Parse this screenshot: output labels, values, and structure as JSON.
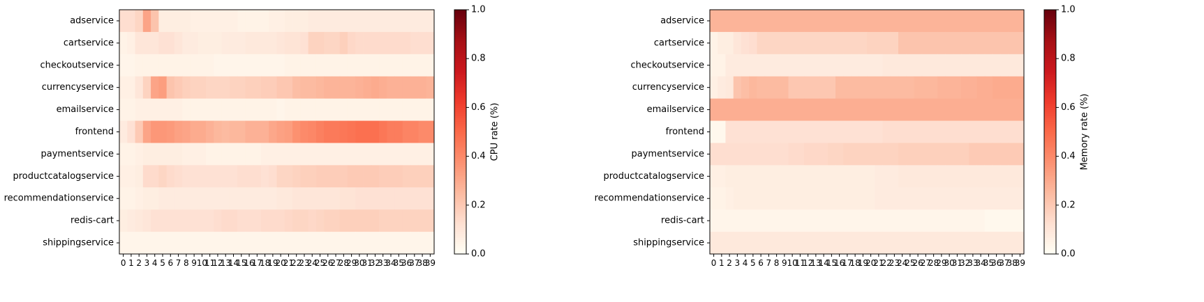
{
  "chart_data": [
    {
      "type": "heatmap",
      "rows": [
        "adservice",
        "cartservice",
        "checkoutservice",
        "currencyservice",
        "emailservice",
        "frontend",
        "paymentservice",
        "productcatalogservice",
        "recommendationservice",
        "redis-cart",
        "shippingservice"
      ],
      "x": [
        0,
        1,
        2,
        3,
        4,
        5,
        6,
        7,
        8,
        9,
        10,
        11,
        12,
        13,
        14,
        15,
        16,
        17,
        18,
        19,
        20,
        21,
        22,
        23,
        24,
        25,
        26,
        27,
        28,
        29,
        30,
        31,
        32,
        33,
        34,
        35,
        36,
        37,
        38,
        39
      ],
      "xtick_labels": [
        "0",
        "1",
        "2",
        "3",
        "4",
        "5",
        "6",
        "7",
        "8",
        "9",
        "10",
        "11",
        "12",
        "13",
        "14",
        "15",
        "16",
        "17",
        "18",
        "19",
        "20",
        "21",
        "22",
        "23",
        "24",
        "25",
        "26",
        "27",
        "28",
        "29",
        "30",
        "31",
        "32",
        "33",
        "34",
        "35",
        "36",
        "37",
        "38",
        "39"
      ],
      "colormap": "Reds",
      "vmin": 0,
      "vmax": 1,
      "colorbar_label": "CPU rate (%)",
      "colorbar_ticks": [
        "0.0",
        "0.2",
        "0.4",
        "0.6",
        "0.8",
        "1.0"
      ],
      "colorbar_tick_values": [
        0,
        0.2,
        0.4,
        0.6,
        0.8,
        1.0
      ],
      "values": [
        [
          0.13,
          0.13,
          0.16,
          0.32,
          0.22,
          0.07,
          0.07,
          0.07,
          0.07,
          0.06,
          0.06,
          0.06,
          0.06,
          0.06,
          0.06,
          0.05,
          0.05,
          0.05,
          0.05,
          0.06,
          0.06,
          0.07,
          0.07,
          0.07,
          0.08,
          0.08,
          0.08,
          0.08,
          0.08,
          0.08,
          0.08,
          0.08,
          0.08,
          0.08,
          0.08,
          0.08,
          0.08,
          0.08,
          0.08,
          0.08
        ],
        [
          0.05,
          0.06,
          0.1,
          0.1,
          0.1,
          0.12,
          0.12,
          0.1,
          0.08,
          0.08,
          0.07,
          0.07,
          0.07,
          0.08,
          0.08,
          0.08,
          0.09,
          0.09,
          0.09,
          0.09,
          0.1,
          0.11,
          0.11,
          0.12,
          0.17,
          0.17,
          0.16,
          0.16,
          0.18,
          0.15,
          0.14,
          0.14,
          0.14,
          0.14,
          0.14,
          0.14,
          0.14,
          0.13,
          0.13,
          0.13
        ],
        [
          0.04,
          0.04,
          0.05,
          0.05,
          0.05,
          0.05,
          0.05,
          0.05,
          0.05,
          0.05,
          0.05,
          0.05,
          0.04,
          0.04,
          0.04,
          0.04,
          0.04,
          0.04,
          0.04,
          0.04,
          0.04,
          0.05,
          0.05,
          0.05,
          0.05,
          0.05,
          0.05,
          0.05,
          0.05,
          0.05,
          0.05,
          0.05,
          0.05,
          0.05,
          0.05,
          0.05,
          0.05,
          0.05,
          0.05,
          0.05
        ],
        [
          0.06,
          0.06,
          0.1,
          0.17,
          0.32,
          0.34,
          0.22,
          0.2,
          0.18,
          0.17,
          0.17,
          0.16,
          0.16,
          0.16,
          0.17,
          0.17,
          0.18,
          0.18,
          0.19,
          0.19,
          0.21,
          0.21,
          0.24,
          0.25,
          0.25,
          0.26,
          0.27,
          0.27,
          0.27,
          0.27,
          0.28,
          0.29,
          0.3,
          0.29,
          0.28,
          0.28,
          0.28,
          0.28,
          0.28,
          0.27
        ],
        [
          0.05,
          0.05,
          0.06,
          0.06,
          0.06,
          0.06,
          0.06,
          0.06,
          0.05,
          0.05,
          0.05,
          0.05,
          0.05,
          0.05,
          0.05,
          0.05,
          0.05,
          0.05,
          0.05,
          0.05,
          0.04,
          0.05,
          0.05,
          0.05,
          0.05,
          0.05,
          0.05,
          0.05,
          0.05,
          0.05,
          0.05,
          0.05,
          0.05,
          0.05,
          0.05,
          0.05,
          0.05,
          0.05,
          0.05,
          0.05
        ],
        [
          0.08,
          0.12,
          0.2,
          0.32,
          0.36,
          0.36,
          0.35,
          0.33,
          0.32,
          0.3,
          0.3,
          0.28,
          0.26,
          0.25,
          0.26,
          0.26,
          0.28,
          0.28,
          0.28,
          0.31,
          0.33,
          0.34,
          0.38,
          0.4,
          0.41,
          0.43,
          0.45,
          0.45,
          0.46,
          0.47,
          0.48,
          0.48,
          0.48,
          0.46,
          0.44,
          0.44,
          0.42,
          0.42,
          0.4,
          0.4
        ],
        [
          0.05,
          0.05,
          0.06,
          0.07,
          0.07,
          0.07,
          0.07,
          0.07,
          0.06,
          0.06,
          0.06,
          0.05,
          0.05,
          0.05,
          0.05,
          0.05,
          0.05,
          0.05,
          0.06,
          0.06,
          0.06,
          0.06,
          0.06,
          0.06,
          0.06,
          0.06,
          0.06,
          0.06,
          0.06,
          0.06,
          0.06,
          0.06,
          0.06,
          0.06,
          0.06,
          0.06,
          0.06,
          0.06,
          0.06,
          0.06
        ],
        [
          0.06,
          0.06,
          0.07,
          0.14,
          0.14,
          0.16,
          0.14,
          0.13,
          0.12,
          0.12,
          0.12,
          0.12,
          0.12,
          0.12,
          0.12,
          0.13,
          0.13,
          0.13,
          0.12,
          0.13,
          0.16,
          0.16,
          0.17,
          0.18,
          0.18,
          0.19,
          0.19,
          0.19,
          0.19,
          0.2,
          0.2,
          0.2,
          0.2,
          0.19,
          0.19,
          0.19,
          0.18,
          0.18,
          0.18,
          0.18
        ],
        [
          0.05,
          0.05,
          0.06,
          0.07,
          0.07,
          0.08,
          0.08,
          0.08,
          0.08,
          0.08,
          0.08,
          0.08,
          0.08,
          0.08,
          0.08,
          0.08,
          0.08,
          0.08,
          0.08,
          0.08,
          0.09,
          0.09,
          0.1,
          0.1,
          0.1,
          0.1,
          0.1,
          0.1,
          0.11,
          0.11,
          0.12,
          0.12,
          0.12,
          0.12,
          0.12,
          0.12,
          0.12,
          0.12,
          0.12,
          0.12
        ],
        [
          0.07,
          0.08,
          0.09,
          0.1,
          0.12,
          0.12,
          0.12,
          0.12,
          0.12,
          0.12,
          0.12,
          0.12,
          0.13,
          0.14,
          0.14,
          0.13,
          0.13,
          0.13,
          0.14,
          0.14,
          0.14,
          0.15,
          0.16,
          0.16,
          0.15,
          0.16,
          0.17,
          0.17,
          0.18,
          0.18,
          0.18,
          0.18,
          0.18,
          0.17,
          0.17,
          0.17,
          0.17,
          0.17,
          0.17,
          0.17
        ],
        [
          0.04,
          0.04,
          0.04,
          0.04,
          0.04,
          0.04,
          0.04,
          0.04,
          0.04,
          0.04,
          0.04,
          0.04,
          0.04,
          0.04,
          0.04,
          0.04,
          0.04,
          0.04,
          0.04,
          0.04,
          0.04,
          0.04,
          0.04,
          0.04,
          0.04,
          0.04,
          0.04,
          0.04,
          0.04,
          0.04,
          0.04,
          0.04,
          0.04,
          0.04,
          0.04,
          0.04,
          0.04,
          0.04,
          0.04,
          0.04
        ]
      ]
    },
    {
      "type": "heatmap",
      "rows": [
        "adservice",
        "cartservice",
        "checkoutservice",
        "currencyservice",
        "emailservice",
        "frontend",
        "paymentservice",
        "productcatalogservice",
        "recommendationservice",
        "redis-cart",
        "shippingservice"
      ],
      "x": [
        0,
        1,
        2,
        3,
        4,
        5,
        6,
        7,
        8,
        9,
        10,
        11,
        12,
        13,
        14,
        15,
        16,
        17,
        18,
        19,
        20,
        21,
        22,
        23,
        24,
        25,
        26,
        27,
        28,
        29,
        30,
        31,
        32,
        33,
        34,
        35,
        36,
        37,
        38,
        39
      ],
      "xtick_labels": [
        "0",
        "1",
        "2",
        "3",
        "4",
        "5",
        "6",
        "7",
        "8",
        "9",
        "10",
        "11",
        "12",
        "13",
        "14",
        "15",
        "16",
        "17",
        "18",
        "19",
        "20",
        "21",
        "22",
        "23",
        "24",
        "25",
        "26",
        "27",
        "28",
        "29",
        "30",
        "31",
        "32",
        "33",
        "34",
        "35",
        "36",
        "37",
        "38",
        "39"
      ],
      "colormap": "Reds",
      "vmin": 0,
      "vmax": 1,
      "colorbar_label": "Memory rate (%)",
      "colorbar_ticks": [
        "0.0",
        "0.2",
        "0.4",
        "0.6",
        "0.8",
        "1.0"
      ],
      "colorbar_tick_values": [
        0,
        0.2,
        0.4,
        0.6,
        0.8,
        1.0
      ],
      "values": [
        [
          0.27,
          0.27,
          0.27,
          0.27,
          0.27,
          0.27,
          0.27,
          0.27,
          0.27,
          0.27,
          0.27,
          0.27,
          0.27,
          0.27,
          0.27,
          0.27,
          0.27,
          0.27,
          0.27,
          0.27,
          0.27,
          0.27,
          0.27,
          0.27,
          0.27,
          0.27,
          0.27,
          0.27,
          0.27,
          0.27,
          0.27,
          0.27,
          0.27,
          0.27,
          0.27,
          0.27,
          0.27,
          0.27,
          0.27,
          0.27
        ],
        [
          0.05,
          0.07,
          0.07,
          0.1,
          0.12,
          0.13,
          0.16,
          0.16,
          0.16,
          0.16,
          0.16,
          0.16,
          0.16,
          0.16,
          0.16,
          0.16,
          0.16,
          0.16,
          0.16,
          0.16,
          0.17,
          0.17,
          0.17,
          0.17,
          0.22,
          0.22,
          0.22,
          0.22,
          0.22,
          0.22,
          0.22,
          0.22,
          0.22,
          0.22,
          0.22,
          0.22,
          0.22,
          0.22,
          0.22,
          0.22
        ],
        [
          0.05,
          0.05,
          0.08,
          0.08,
          0.08,
          0.08,
          0.08,
          0.08,
          0.08,
          0.08,
          0.08,
          0.08,
          0.08,
          0.08,
          0.08,
          0.08,
          0.08,
          0.08,
          0.08,
          0.08,
          0.08,
          0.08,
          0.09,
          0.09,
          0.09,
          0.09,
          0.09,
          0.09,
          0.09,
          0.09,
          0.09,
          0.09,
          0.09,
          0.09,
          0.09,
          0.09,
          0.09,
          0.09,
          0.09,
          0.09
        ],
        [
          0.06,
          0.08,
          0.09,
          0.22,
          0.24,
          0.26,
          0.25,
          0.25,
          0.25,
          0.25,
          0.21,
          0.21,
          0.21,
          0.21,
          0.21,
          0.21,
          0.25,
          0.25,
          0.25,
          0.25,
          0.25,
          0.25,
          0.25,
          0.25,
          0.25,
          0.25,
          0.26,
          0.26,
          0.26,
          0.27,
          0.27,
          0.27,
          0.28,
          0.28,
          0.29,
          0.29,
          0.3,
          0.3,
          0.3,
          0.3
        ],
        [
          0.29,
          0.29,
          0.29,
          0.29,
          0.29,
          0.29,
          0.29,
          0.29,
          0.29,
          0.29,
          0.29,
          0.29,
          0.29,
          0.29,
          0.29,
          0.29,
          0.29,
          0.29,
          0.29,
          0.29,
          0.29,
          0.29,
          0.29,
          0.29,
          0.29,
          0.29,
          0.29,
          0.29,
          0.29,
          0.29,
          0.29,
          0.29,
          0.29,
          0.29,
          0.29,
          0.29,
          0.29,
          0.29,
          0.29,
          0.29
        ],
        [
          0.03,
          0.03,
          0.12,
          0.12,
          0.12,
          0.12,
          0.12,
          0.12,
          0.12,
          0.12,
          0.12,
          0.12,
          0.12,
          0.12,
          0.12,
          0.12,
          0.12,
          0.12,
          0.12,
          0.12,
          0.12,
          0.12,
          0.13,
          0.13,
          0.13,
          0.13,
          0.13,
          0.13,
          0.13,
          0.13,
          0.13,
          0.13,
          0.13,
          0.13,
          0.13,
          0.13,
          0.13,
          0.13,
          0.13,
          0.13
        ],
        [
          0.13,
          0.13,
          0.13,
          0.13,
          0.13,
          0.13,
          0.13,
          0.13,
          0.13,
          0.13,
          0.14,
          0.14,
          0.15,
          0.15,
          0.15,
          0.16,
          0.16,
          0.17,
          0.17,
          0.17,
          0.17,
          0.17,
          0.17,
          0.17,
          0.18,
          0.18,
          0.18,
          0.18,
          0.18,
          0.18,
          0.18,
          0.18,
          0.18,
          0.2,
          0.2,
          0.2,
          0.2,
          0.2,
          0.2,
          0.2
        ],
        [
          0.06,
          0.06,
          0.07,
          0.07,
          0.07,
          0.07,
          0.07,
          0.07,
          0.07,
          0.07,
          0.07,
          0.07,
          0.07,
          0.07,
          0.07,
          0.07,
          0.07,
          0.07,
          0.07,
          0.07,
          0.07,
          0.08,
          0.08,
          0.08,
          0.09,
          0.09,
          0.09,
          0.09,
          0.09,
          0.09,
          0.09,
          0.09,
          0.09,
          0.09,
          0.09,
          0.09,
          0.09,
          0.09,
          0.09,
          0.09
        ],
        [
          0.05,
          0.05,
          0.06,
          0.07,
          0.07,
          0.07,
          0.07,
          0.07,
          0.07,
          0.07,
          0.07,
          0.07,
          0.07,
          0.07,
          0.07,
          0.07,
          0.07,
          0.07,
          0.07,
          0.07,
          0.07,
          0.08,
          0.08,
          0.08,
          0.08,
          0.08,
          0.08,
          0.08,
          0.08,
          0.08,
          0.08,
          0.08,
          0.08,
          0.08,
          0.08,
          0.08,
          0.08,
          0.08,
          0.08,
          0.08
        ],
        [
          0.04,
          0.04,
          0.04,
          0.04,
          0.04,
          0.04,
          0.04,
          0.04,
          0.04,
          0.04,
          0.04,
          0.04,
          0.04,
          0.04,
          0.04,
          0.04,
          0.04,
          0.04,
          0.04,
          0.04,
          0.04,
          0.04,
          0.04,
          0.04,
          0.04,
          0.04,
          0.04,
          0.04,
          0.04,
          0.04,
          0.04,
          0.04,
          0.04,
          0.04,
          0.04,
          0.03,
          0.03,
          0.03,
          0.03,
          0.03
        ],
        [
          0.09,
          0.09,
          0.09,
          0.09,
          0.09,
          0.09,
          0.09,
          0.09,
          0.09,
          0.09,
          0.09,
          0.09,
          0.09,
          0.09,
          0.09,
          0.09,
          0.09,
          0.09,
          0.09,
          0.09,
          0.09,
          0.09,
          0.09,
          0.09,
          0.09,
          0.09,
          0.09,
          0.09,
          0.09,
          0.09,
          0.09,
          0.09,
          0.09,
          0.09,
          0.09,
          0.09,
          0.09,
          0.09,
          0.09,
          0.09
        ]
      ]
    }
  ]
}
